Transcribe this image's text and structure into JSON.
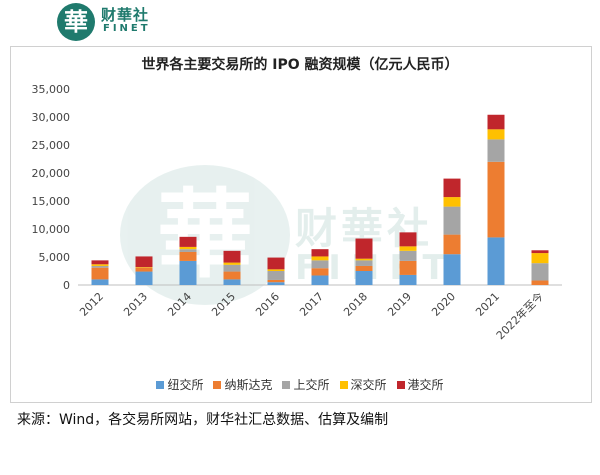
{
  "brand": {
    "mark": "華",
    "name_cn": "财華社",
    "name_en": "FINET"
  },
  "source_note": "来源：Wind，各交易所网站，财华社汇总数据、估算及编制",
  "chart_data": {
    "type": "bar",
    "stacked": true,
    "title": "世界各主要交易所的 IPO 融资规模（亿元人民币）",
    "categories": [
      "2012",
      "2013",
      "2014",
      "2015",
      "2016",
      "2017",
      "2018",
      "2019",
      "2020",
      "2021",
      "2022年至今"
    ],
    "series": [
      {
        "name": "纽交所",
        "color": "#5b9bd5",
        "values": [
          1000,
          2400,
          4300,
          1000,
          500,
          1700,
          2500,
          1800,
          5500,
          8500,
          0
        ]
      },
      {
        "name": "纳斯达克",
        "color": "#ed7d31",
        "values": [
          2100,
          700,
          1600,
          1400,
          400,
          1300,
          900,
          2500,
          3500,
          13500,
          800
        ]
      },
      {
        "name": "上交所",
        "color": "#a5a5a5",
        "values": [
          300,
          0,
          500,
          1200,
          1600,
          1400,
          1000,
          1800,
          5000,
          4000,
          3100
        ]
      },
      {
        "name": "深交所",
        "color": "#ffc000",
        "values": [
          300,
          100,
          400,
          400,
          300,
          700,
          300,
          800,
          1700,
          1800,
          1800
        ]
      },
      {
        "name": "港交所",
        "color": "#c0262c",
        "values": [
          700,
          1900,
          1800,
          2100,
          2100,
          1300,
          3600,
          2500,
          3300,
          2600,
          500
        ]
      }
    ],
    "ylim": [
      0,
      35000
    ],
    "yticks": [
      "0",
      "5,000",
      "10,000",
      "15,000",
      "20,000",
      "25,000",
      "30,000",
      "35,000"
    ],
    "grid": false,
    "legend": "bottom"
  }
}
